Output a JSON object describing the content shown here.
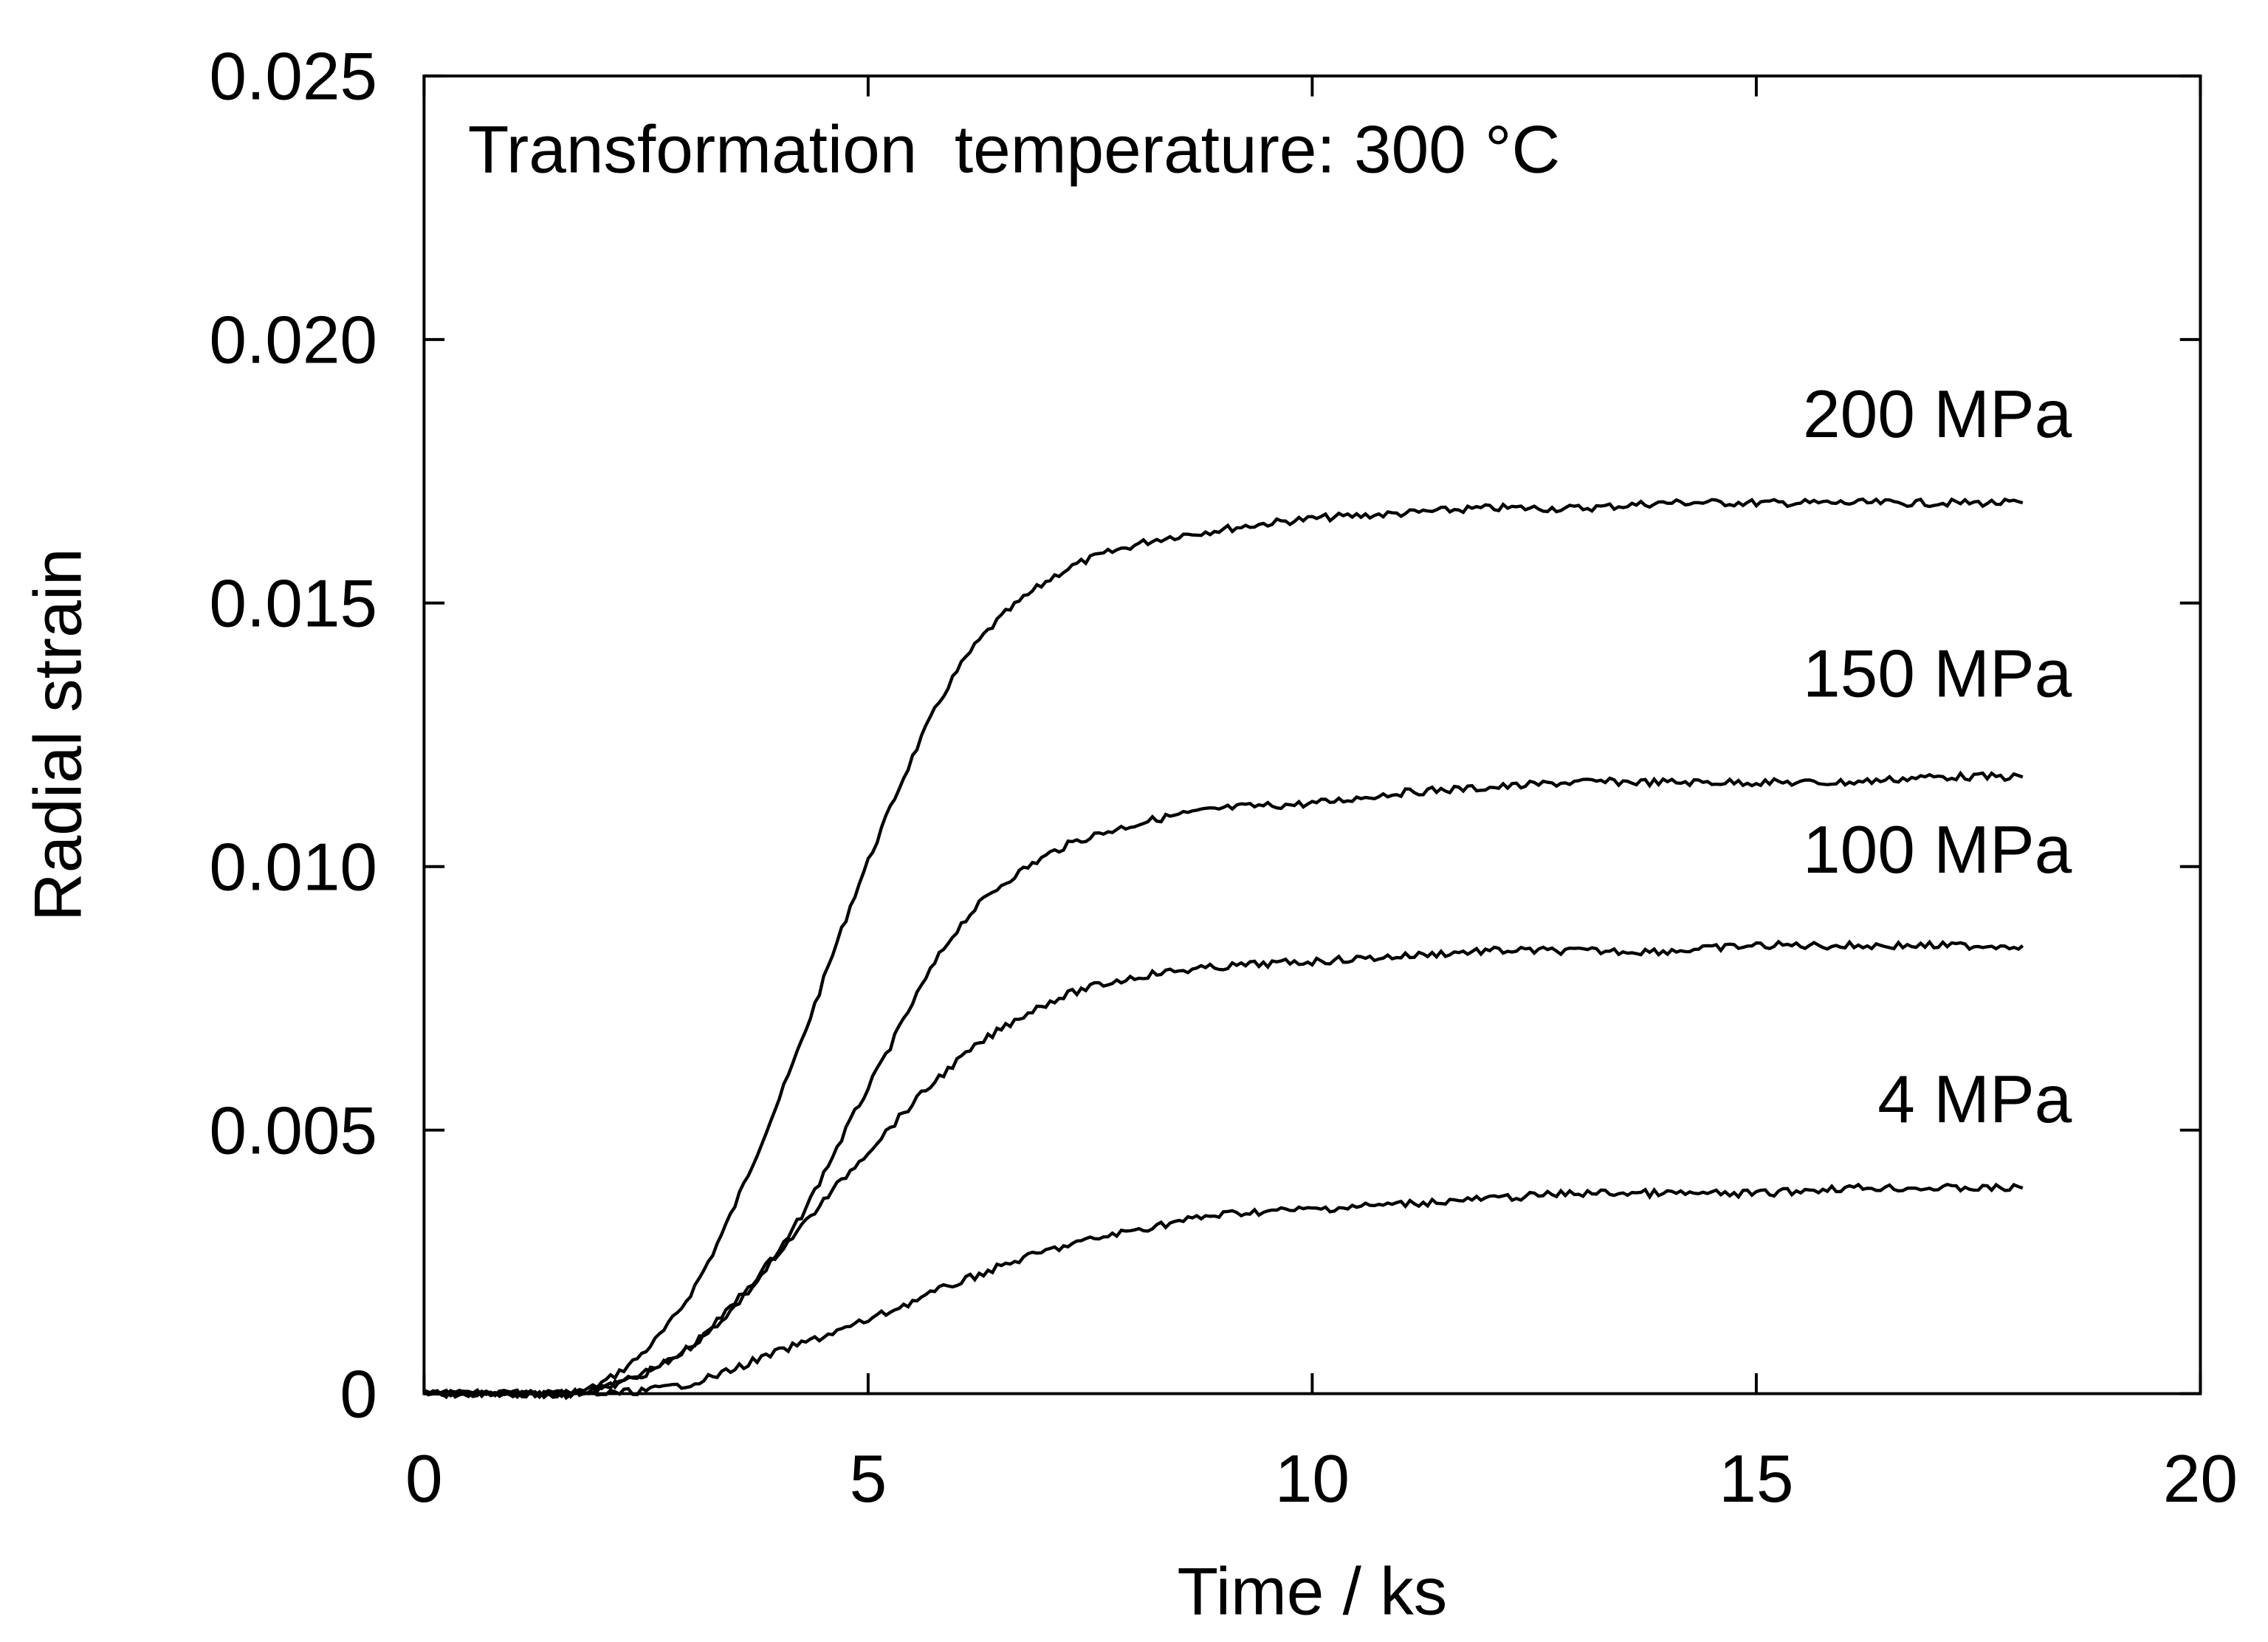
{
  "chart_data": {
    "type": "line",
    "title": "",
    "annotation": "Transformation  temperature: 300 °C",
    "annotation_parts": {
      "main": "Transformation  temperature: 300 ",
      "degree": "o",
      "unit": "C"
    },
    "xlabel": "Time / ks",
    "ylabel": "Radial strain",
    "xlim": [
      0,
      20
    ],
    "ylim": [
      0,
      0.025
    ],
    "xticks": [
      0,
      5,
      10,
      15,
      20
    ],
    "xtick_labels": [
      "0",
      "5",
      "10",
      "15",
      "20"
    ],
    "yticks": [
      0,
      0.005,
      0.01,
      0.015,
      0.02,
      0.025
    ],
    "ytick_labels": [
      "0",
      "0.005",
      "0.010",
      "0.015",
      "0.020",
      "0.025"
    ],
    "grid": false,
    "legend": "labels placed at the right end of each curve",
    "x": [
      0,
      1,
      2,
      3,
      4,
      5,
      6,
      7,
      8,
      9,
      10,
      11,
      12,
      13,
      14,
      15,
      16,
      17,
      18
    ],
    "series": [
      {
        "name": "200 MPa",
        "values": [
          0,
          0,
          0.0002,
          0.0019,
          0.0056,
          0.0101,
          0.0137,
          0.0154,
          0.0161,
          0.0164,
          0.0166,
          0.0167,
          0.0168,
          0.0168,
          0.0169,
          0.0169,
          0.0169,
          0.0169,
          0.0169
        ]
      },
      {
        "name": "150 MPa",
        "values": [
          0,
          0,
          0.0001,
          0.0009,
          0.0027,
          0.0058,
          0.0088,
          0.0102,
          0.0108,
          0.0111,
          0.0112,
          0.0114,
          0.0115,
          0.0116,
          0.0116,
          0.0116,
          0.0116,
          0.0117,
          0.0117
        ]
      },
      {
        "name": "100 MPa",
        "values": [
          0,
          0,
          0.0001,
          0.0009,
          0.0027,
          0.0046,
          0.0063,
          0.0074,
          0.0079,
          0.0081,
          0.0082,
          0.0083,
          0.0084,
          0.0084,
          0.0084,
          0.0085,
          0.0085,
          0.0085,
          0.0085
        ]
      },
      {
        "name": "4 MPa",
        "values": [
          0,
          0,
          0,
          0.0002,
          0.0008,
          0.0014,
          0.0021,
          0.0027,
          0.0031,
          0.0034,
          0.0035,
          0.0036,
          0.0037,
          0.0038,
          0.0038,
          0.0038,
          0.0039,
          0.0039,
          0.0039
        ]
      }
    ],
    "line_color": "#000000"
  }
}
